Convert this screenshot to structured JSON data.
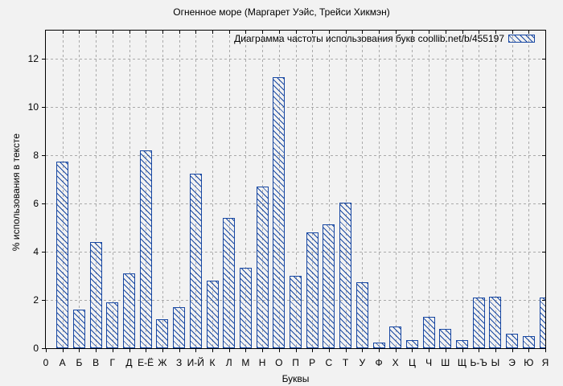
{
  "title": "Огненное море (Маргарет Уэйс, Трейси Хикмэн)",
  "legend": {
    "label": "Диаграмма частоты использования букв",
    "source": "coollib.net/b/455197"
  },
  "colors": {
    "bar": "#1747a2",
    "grid": "#aaaaaa",
    "frame": "#000000",
    "background": "#f2f2f2"
  },
  "chart_data": {
    "type": "bar",
    "title": "Огненное море (Маргарет Уэйс, Трейси Хикмэн)",
    "xlabel": "Буквы",
    "ylabel": "% использования в тексте",
    "legend": "Диаграмма частоты использования букв  coollib.net/b/455197",
    "legend_position": "top-right",
    "grid": true,
    "ylim": [
      0,
      13.2
    ],
    "y_ticks": [
      0,
      2,
      4,
      6,
      8,
      10,
      12
    ],
    "x_origin_label": "0",
    "categories": [
      "А",
      "Б",
      "В",
      "Г",
      "Д",
      "Е-Ё",
      "Ж",
      "З",
      "И-Й",
      "К",
      "Л",
      "М",
      "Н",
      "О",
      "П",
      "Р",
      "С",
      "Т",
      "У",
      "Ф",
      "Х",
      "Ц",
      "Ч",
      "Ш",
      "Щ",
      "Ь-Ъ",
      "Ы",
      "Э",
      "Ю",
      "Я"
    ],
    "values": [
      7.75,
      1.6,
      4.4,
      1.9,
      3.1,
      8.2,
      1.2,
      1.7,
      7.25,
      2.8,
      5.4,
      3.35,
      6.7,
      11.25,
      3.0,
      4.8,
      5.15,
      6.05,
      2.75,
      0.25,
      0.9,
      0.35,
      1.3,
      0.8,
      0.35,
      2.1,
      2.15,
      0.6,
      0.5,
      2.1
    ]
  }
}
